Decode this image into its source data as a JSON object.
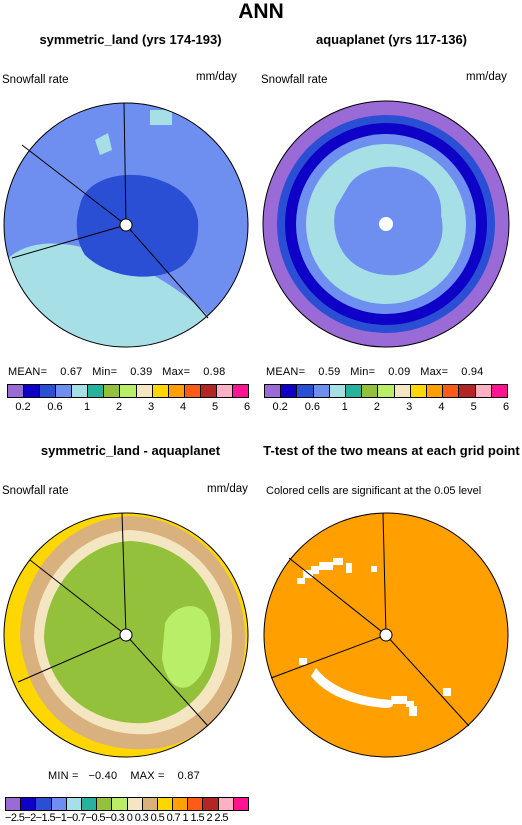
{
  "figure": {
    "title": "ANN"
  },
  "palette": {
    "colors": [
      "#9a6ad6",
      "#0f00c8",
      "#2a4fd4",
      "#6f8ff0",
      "#a7dfe6",
      "#25b39d",
      "#93c13c",
      "#b9ef68",
      "#f5e6c2",
      "#d9b17f",
      "#ffd700",
      "#ff9f00",
      "#ff5a16",
      "#b32624",
      "#ffb0c4",
      "#ff1493"
    ]
  },
  "chart_data": [
    {
      "type": "polar-contour",
      "panel": "top-left",
      "title": "symmetric_land (yrs 174-193)",
      "variable": "Snowfall rate",
      "units": "mm/day",
      "stats": {
        "mean_label": "MEAN=",
        "mean": "0.67",
        "min_label": "Min=",
        "min": "0.39",
        "max_label": "Max=",
        "max": "0.98"
      },
      "colorbar_ticks": [
        "0.2",
        "0.6",
        "1",
        "2",
        "3",
        "4",
        "5",
        "6"
      ],
      "sector_lines_deg": [
        0,
        150,
        240,
        300
      ]
    },
    {
      "type": "polar-contour",
      "panel": "top-right",
      "title": "aquaplanet (yrs 117-136)",
      "variable": "Snowfall rate",
      "units": "mm/day",
      "stats": {
        "mean_label": "MEAN=",
        "mean": "0.59",
        "min_label": "Min=",
        "min": "0.09",
        "max_label": "Max=",
        "max": "0.94"
      },
      "colorbar_ticks": [
        "0.2",
        "0.6",
        "1",
        "2",
        "3",
        "4",
        "5",
        "6"
      ]
    },
    {
      "type": "polar-contour",
      "panel": "bottom-left",
      "title": "symmetric_land - aquaplanet",
      "variable": "Snowfall rate",
      "units": "mm/day",
      "stats": {
        "min_label": "MIN =",
        "min": "−0.40",
        "max_label": "MAX =",
        "max": "0.87"
      },
      "colorbar_ticks_text": "−2.5−2−1.5−1−0.7−0.5−0.3 0  0.3 0.5 0.7  1  1.5  2  2.5"
    },
    {
      "type": "polar-significance",
      "panel": "bottom-right",
      "title": "T-test of the two means at each grid point",
      "subtitle": "Colored cells are significant at the 0.05 level"
    }
  ]
}
